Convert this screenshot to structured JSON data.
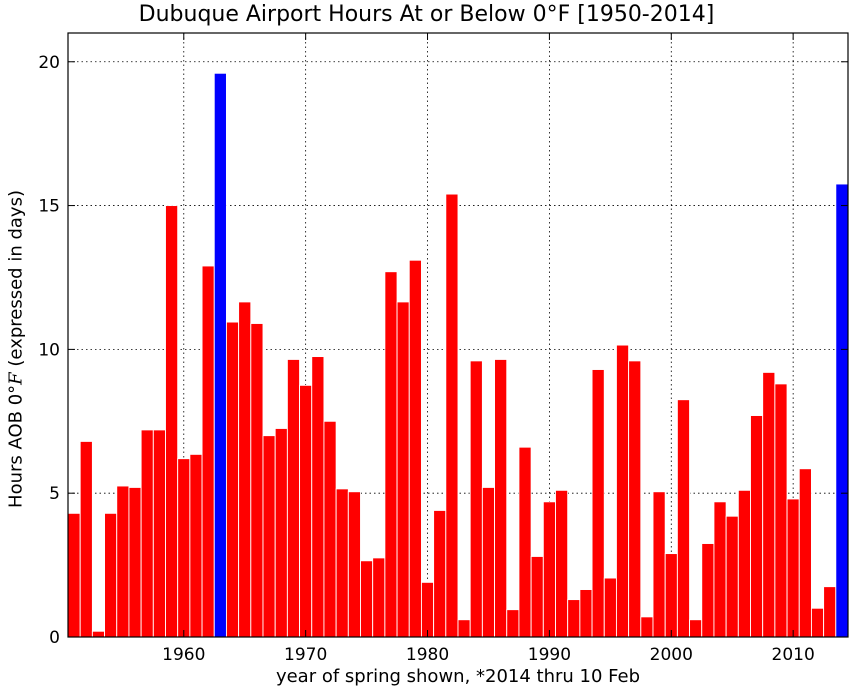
{
  "chart_data": {
    "type": "bar",
    "title": "Dubuque Airport Hours At or Below 0$^\\circ$F [1950-2014]",
    "title_display": "Dubuque Airport Hours At or Below 0°F [1950-2014]",
    "xlabel": "year of spring shown, *2014 thru 10 Feb",
    "ylabel_prefix": "Hours AOB 0°",
    "ylabel_unit": "F",
    "ylabel_suffix": " (expressed in days)",
    "xlim": [
      1950.5,
      2014.5
    ],
    "ylim": [
      0,
      21
    ],
    "xticks": [
      "1960",
      "1970",
      "1980",
      "1990",
      "2000",
      "2010"
    ],
    "xtick_values": [
      1960,
      1970,
      1980,
      1990,
      2000,
      2010
    ],
    "yticks": [
      "0",
      "5",
      "10",
      "15",
      "20"
    ],
    "ytick_values": [
      0,
      5,
      10,
      15,
      20
    ],
    "grid": true,
    "colors": {
      "default_bar": "#ff0000",
      "highlight_bar": "#0000ff"
    },
    "highlight_years": [
      1963,
      2014
    ],
    "x": [
      1951,
      1952,
      1953,
      1954,
      1955,
      1956,
      1957,
      1958,
      1959,
      1960,
      1961,
      1962,
      1963,
      1964,
      1965,
      1966,
      1967,
      1968,
      1969,
      1970,
      1971,
      1972,
      1973,
      1974,
      1975,
      1976,
      1977,
      1978,
      1979,
      1980,
      1981,
      1982,
      1983,
      1984,
      1985,
      1986,
      1987,
      1988,
      1989,
      1990,
      1991,
      1992,
      1993,
      1994,
      1995,
      1996,
      1997,
      1998,
      1999,
      2000,
      2001,
      2002,
      2003,
      2004,
      2005,
      2006,
      2007,
      2008,
      2009,
      2010,
      2011,
      2012,
      2013,
      2014
    ],
    "values": [
      4.3,
      6.8,
      0.2,
      4.3,
      5.25,
      5.2,
      7.2,
      7.2,
      15.0,
      6.2,
      6.35,
      12.9,
      19.6,
      10.95,
      11.65,
      10.9,
      7.0,
      7.25,
      9.65,
      8.75,
      9.75,
      7.5,
      5.15,
      5.05,
      2.65,
      2.75,
      12.7,
      11.65,
      13.1,
      1.9,
      4.4,
      15.4,
      0.6,
      9.6,
      5.2,
      9.65,
      0.95,
      6.6,
      2.8,
      4.7,
      5.1,
      1.3,
      1.65,
      9.3,
      2.05,
      10.15,
      9.6,
      0.7,
      5.05,
      2.9,
      8.25,
      0.6,
      3.25,
      4.7,
      4.2,
      5.1,
      7.7,
      9.2,
      8.8,
      4.8,
      5.85,
      1.0,
      1.75,
      15.75
    ]
  }
}
